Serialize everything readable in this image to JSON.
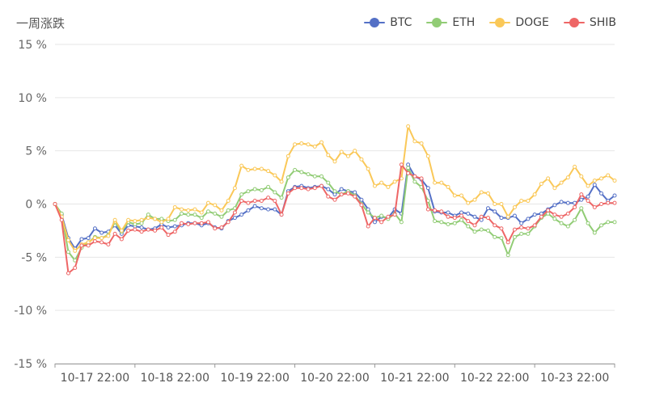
{
  "header": {
    "title": "一周涨跌"
  },
  "chart_data": {
    "type": "line",
    "title": "一周涨跌",
    "xlabel": "",
    "ylabel": "",
    "ylim": [
      -15,
      15
    ],
    "yticks": [
      "15 %",
      "10 %",
      "5 %",
      "0 %",
      "-5 %",
      "-10 %",
      "-15 %"
    ],
    "xticks": [
      "10-17 22:00",
      "10-18 22:00",
      "10-19 22:00",
      "10-20 22:00",
      "10-21 22:00",
      "10-22 22:00",
      "10-23 22:00"
    ],
    "grid": true,
    "legend_position": "top-right",
    "x": [
      0,
      1,
      2,
      3,
      4,
      5,
      6,
      7,
      8,
      9,
      10,
      11,
      12,
      13,
      14,
      15,
      16,
      17,
      18,
      19,
      20,
      21,
      22,
      23,
      24,
      25,
      26,
      27,
      28,
      29,
      30,
      31,
      32,
      33,
      34,
      35,
      36,
      37,
      38,
      39,
      40,
      41,
      42,
      43,
      44,
      45,
      46,
      47,
      48,
      49,
      50,
      51,
      52,
      53,
      54,
      55,
      56,
      57,
      58,
      59,
      60,
      61,
      62,
      63,
      64,
      65,
      66,
      67,
      68,
      69,
      70,
      71,
      72,
      73,
      74,
      75,
      76,
      77,
      78,
      79,
      80,
      81,
      82,
      83,
      84
    ],
    "series": [
      {
        "name": "BTC",
        "color": "#5470c6",
        "values": [
          0,
          -1,
          -3.2,
          -4.2,
          -3.3,
          -3.2,
          -2.3,
          -2.7,
          -2.6,
          -2,
          -2.8,
          -2,
          -2.1,
          -2.2,
          -2.4,
          -2.3,
          -1.9,
          -2.2,
          -2.1,
          -2,
          -1.8,
          -1.8,
          -2,
          -1.8,
          -2.2,
          -2.3,
          -1.6,
          -1.3,
          -1,
          -0.6,
          -0.2,
          -0.4,
          -0.5,
          -0.5,
          -1,
          1.2,
          1.6,
          1.7,
          1.5,
          1.6,
          1.7,
          1.4,
          0.9,
          1.4,
          1.2,
          1.1,
          0.4,
          -0.5,
          -1.7,
          -1.2,
          -1.3,
          -0.5,
          -0.9,
          3.7,
          2.6,
          2.3,
          1.5,
          -0.7,
          -0.8,
          -0.8,
          -1.1,
          -0.8,
          -0.9,
          -1.2,
          -1.5,
          -0.4,
          -0.7,
          -1.3,
          -1.3,
          -1.1,
          -1.8,
          -1.4,
          -1,
          -0.9,
          -0.5,
          -0.1,
          0.2,
          0.1,
          0.1,
          0.4,
          0.7,
          1.8,
          1,
          0.3,
          0.8
        ]
      },
      {
        "name": "ETH",
        "color": "#91cc75",
        "values": [
          0,
          -0.9,
          -4.5,
          -5.3,
          -4.1,
          -3.6,
          -3.1,
          -3.2,
          -2.9,
          -1.7,
          -2.6,
          -1.7,
          -1.9,
          -1.8,
          -1,
          -1.4,
          -1.4,
          -1.6,
          -1.5,
          -0.9,
          -1,
          -1,
          -1.3,
          -0.7,
          -0.9,
          -1.2,
          -0.6,
          -0.4,
          0.9,
          1.2,
          1.4,
          1.3,
          1.6,
          1.1,
          0.6,
          2.5,
          3.2,
          3,
          2.8,
          2.6,
          2.6,
          2,
          1.2,
          0.9,
          1.2,
          0.8,
          0,
          -0.8,
          -1.3,
          -1.1,
          -1.4,
          -0.9,
          -1.7,
          3.4,
          2.1,
          1.6,
          0.3,
          -1.6,
          -1.7,
          -1.9,
          -1.8,
          -1.5,
          -2.1,
          -2.6,
          -2.4,
          -2.5,
          -3.1,
          -3.2,
          -4.8,
          -3.1,
          -2.8,
          -2.8,
          -2.1,
          -1.3,
          -0.9,
          -1.4,
          -1.8,
          -2.1,
          -1.5,
          -0.4,
          -1.8,
          -2.7,
          -2,
          -1.7,
          -1.7
        ]
      },
      {
        "name": "DOGE",
        "color": "#fac858",
        "values": [
          0,
          -1.2,
          -3.4,
          -4.4,
          -3.8,
          -3.6,
          -3.2,
          -3.2,
          -3,
          -1.5,
          -2.5,
          -1.5,
          -1.6,
          -1.5,
          -1.3,
          -1.4,
          -1.7,
          -1.4,
          -0.3,
          -0.5,
          -0.6,
          -0.5,
          -0.8,
          0.1,
          -0.1,
          -0.6,
          0.3,
          1.5,
          3.6,
          3.2,
          3.3,
          3.3,
          3.1,
          2.7,
          2.1,
          4.5,
          5.6,
          5.7,
          5.6,
          5.4,
          5.8,
          4.6,
          4,
          4.9,
          4.5,
          5,
          4.2,
          3.3,
          1.7,
          2,
          1.6,
          2.1,
          2.4,
          7.3,
          5.9,
          5.7,
          4.5,
          2,
          2,
          1.6,
          0.8,
          0.8,
          0.1,
          0.4,
          1.1,
          1,
          0,
          0,
          -1.2,
          -0.3,
          0.3,
          0.3,
          0.9,
          1.9,
          2.4,
          1.5,
          2,
          2.5,
          3.5,
          2.6,
          1.7,
          2.2,
          2.4,
          2.7,
          2.2
        ]
      },
      {
        "name": "SHIB",
        "color": "#ee6666",
        "values": [
          0,
          -1.5,
          -6.5,
          -6,
          -3.9,
          -3.9,
          -3.5,
          -3.6,
          -3.8,
          -2.8,
          -3.3,
          -2.5,
          -2.4,
          -2.6,
          -2.4,
          -2.5,
          -2.2,
          -2.9,
          -2.6,
          -1.8,
          -1.9,
          -1.8,
          -1.8,
          -1.7,
          -2.3,
          -2.2,
          -1.7,
          -0.8,
          0.3,
          0.1,
          0.3,
          0.3,
          0.6,
          0.3,
          -1,
          1,
          1.5,
          1.5,
          1.4,
          1.5,
          1.7,
          0.7,
          0.4,
          0.9,
          1,
          0.7,
          -0.1,
          -2.1,
          -1.3,
          -1.7,
          -1.2,
          -1,
          3.7,
          2.9,
          2.6,
          2.4,
          -0.5,
          -0.6,
          -0.7,
          -1.2,
          -1.3,
          -1.1,
          -1.6,
          -2,
          -1.2,
          -1.3,
          -2,
          -2.3,
          -3.6,
          -2.4,
          -2.2,
          -2.3,
          -2,
          -1.2,
          -0.6,
          -1,
          -1.2,
          -0.9,
          -0.3,
          0.9,
          0.3,
          -0.3,
          0,
          0.1,
          0.1
        ]
      }
    ]
  }
}
